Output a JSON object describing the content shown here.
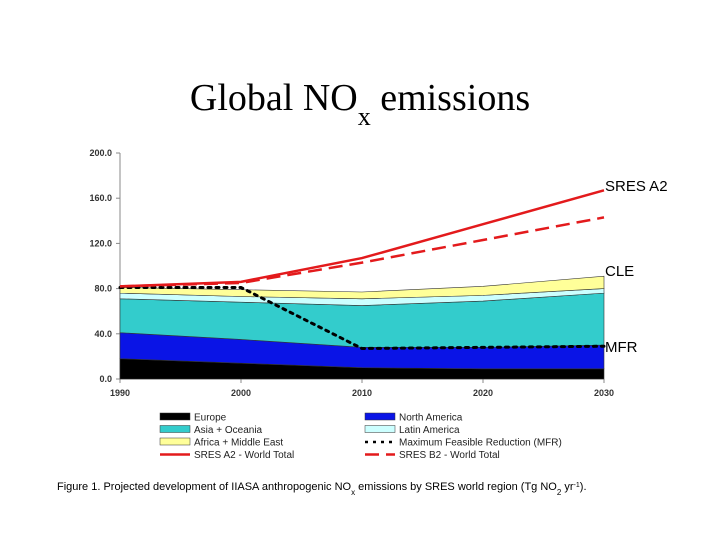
{
  "chart_data": {
    "type": "stacked-area",
    "title": [
      "Global NO",
      "x",
      " emissions"
    ],
    "x": [
      1990,
      2000,
      2010,
      2020,
      2030
    ],
    "xlim": [
      1990,
      2030
    ],
    "xticks": [
      1990,
      2000,
      2010,
      2020,
      2030
    ],
    "ylim": [
      0,
      200
    ],
    "yticks": [
      {
        "value": 0,
        "label": "0.0"
      },
      {
        "value": 40,
        "label": "40.0"
      },
      {
        "value": 80,
        "label": "80.0"
      },
      {
        "value": 120,
        "label": "120.0"
      },
      {
        "value": 160,
        "label": "160.0"
      },
      {
        "value": 200,
        "label": "200.0"
      }
    ],
    "series": [
      {
        "name": "Europe",
        "color": "#000000",
        "kind": "area",
        "values": [
          18,
          14,
          10,
          9,
          9
        ]
      },
      {
        "name": "North America",
        "color": "#0a14e6",
        "kind": "area",
        "values": [
          23,
          21,
          18,
          19,
          21
        ]
      },
      {
        "name": "Asia + Oceania",
        "color": "#33cccc",
        "kind": "area",
        "values": [
          30,
          33,
          37,
          41,
          46
        ]
      },
      {
        "name": "Latin America",
        "color": "#ccffff",
        "kind": "area",
        "values": [
          5,
          5,
          6,
          5,
          4
        ]
      },
      {
        "name": "Africa + Middle East",
        "color": "#ffff99",
        "kind": "area",
        "values": [
          5,
          6,
          6,
          8,
          11
        ]
      },
      {
        "name": "Maximum Feasible Reduction (MFR)",
        "color": "#000000",
        "kind": "line",
        "style": "dotted",
        "values": [
          81,
          81,
          27,
          28,
          29
        ]
      },
      {
        "name": "SRES A2 - World Total",
        "color": "#e31a1c",
        "kind": "line",
        "style": "solid",
        "values": [
          82,
          86,
          107,
          137,
          167
        ]
      },
      {
        "name": "SRES B2 - World Total",
        "color": "#e31a1c",
        "kind": "line",
        "style": "dashed",
        "values": [
          82,
          85,
          103,
          123,
          143
        ]
      }
    ],
    "annotations": [
      "SRES A2",
      "CLE",
      "MFR"
    ],
    "caption": [
      "Figure 1. Projected development of IIASA anthropogenic NO",
      "x",
      " emissions by SRES world region (Tg NO",
      "2",
      " yr",
      "-1",
      ")."
    ]
  }
}
